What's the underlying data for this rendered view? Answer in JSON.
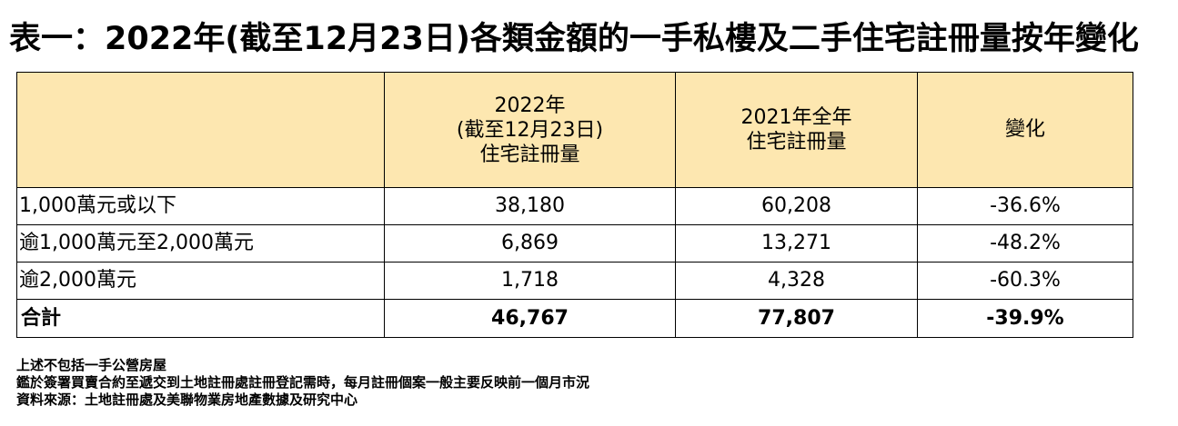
{
  "title": "表一：2022年(截至12月23日)各類金額的一手私樓及二手住宅註冊量按年變化",
  "table": {
    "headers": {
      "col1": "",
      "col2": [
        "2022年",
        "(截至12月23日)",
        "住宅註冊量"
      ],
      "col3": [
        "2021年全年",
        "住宅註冊量"
      ],
      "col4": "變化"
    },
    "rows": [
      {
        "label": "1,000萬元或以下",
        "y2022": "38,180",
        "y2021": "60,208",
        "change": "-36.6%"
      },
      {
        "label": "逾1,000萬元至2,000萬元",
        "y2022": "6,869",
        "y2021": "13,271",
        "change": "-48.2%"
      },
      {
        "label": "逾2,000萬元",
        "y2022": "1,718",
        "y2021": "4,328",
        "change": "-60.3%"
      }
    ],
    "total": {
      "label": "合計",
      "y2022": "46,767",
      "y2021": "77,807",
      "change": "-39.9%"
    }
  },
  "notes": [
    "上述不包括一手公營房屋",
    "鑑於簽署買賣合約至遞交到土地註冊處註冊登記需時，每月註冊個案一般主要反映前一個月市況",
    "資料來源：土地註冊處及美聯物業房地產數據及研究中心"
  ]
}
